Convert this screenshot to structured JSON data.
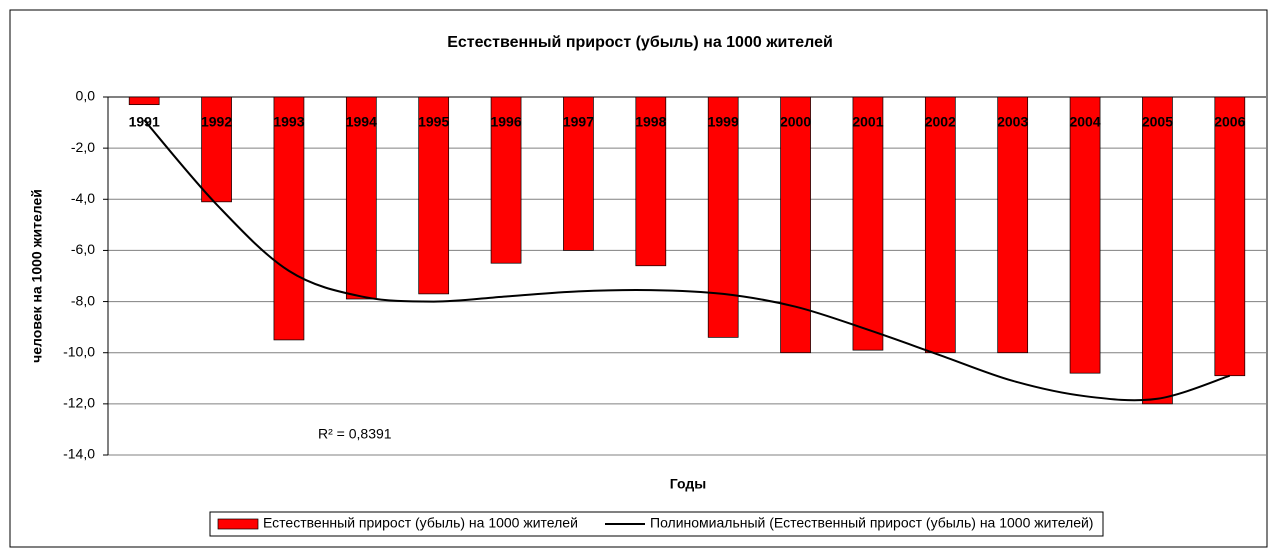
{
  "chart_data": {
    "type": "bar",
    "title": "Естественный прирост (убыль) на 1000 жителей",
    "ylabel": "человек на 1000 жителей",
    "xlabel": "Годы",
    "annotation": "R² = 0,8391",
    "categories": [
      "1991",
      "1992",
      "1993",
      "1994",
      "1995",
      "1996",
      "1997",
      "1998",
      "1999",
      "2000",
      "2001",
      "2002",
      "2003",
      "2004",
      "2005",
      "2006"
    ],
    "series": [
      {
        "name": "Естественный прирост (убыль) на 1000 жителей",
        "color": "#ff0000",
        "values": [
          -0.3,
          -4.1,
          -9.5,
          -7.9,
          -7.7,
          -6.5,
          -6.0,
          -6.6,
          -9.4,
          -10.0,
          -9.9,
          -10.0,
          -10.0,
          -10.8,
          -12.0,
          -10.9
        ]
      },
      {
        "name": "Полиномиальный (Естественный прирост (убыль) на 1000 жителей)",
        "color": "#000000",
        "type": "line",
        "values": [
          -0.9,
          -4.2,
          -6.8,
          -7.8,
          -8.0,
          -7.8,
          -7.6,
          -7.55,
          -7.7,
          -8.2,
          -9.1,
          -10.1,
          -11.1,
          -11.7,
          -11.8,
          -10.9
        ]
      }
    ],
    "ylim": [
      -14,
      0
    ],
    "yticks": [
      {
        "value": 0,
        "label": "0,0"
      },
      {
        "value": -2,
        "label": "-2,0"
      },
      {
        "value": -4,
        "label": "-4,0"
      },
      {
        "value": -6,
        "label": "-6,0"
      },
      {
        "value": -8,
        "label": "-8,0"
      },
      {
        "value": -10,
        "label": "-10,0"
      },
      {
        "value": -12,
        "label": "-12,0"
      },
      {
        "value": -14,
        "label": "-14,0"
      }
    ],
    "grid": true,
    "legend": "bottom"
  }
}
